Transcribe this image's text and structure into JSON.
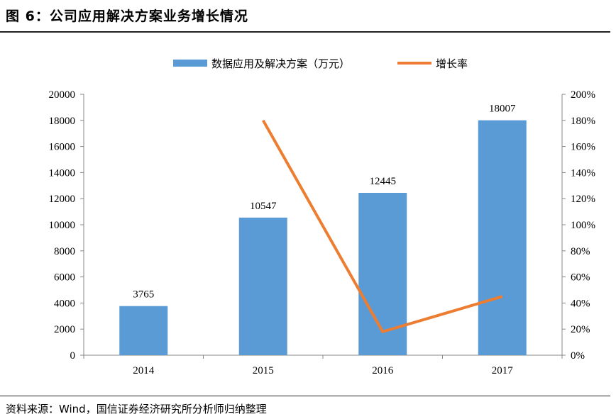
{
  "figure": {
    "title": "图 6：公司应用解决方案业务增长情况",
    "source": "资料来源：Wind，国信证券经济研究所分析师归纳整理"
  },
  "chart_data": {
    "type": "bar",
    "title": "",
    "categories": [
      "2014",
      "2015",
      "2016",
      "2017"
    ],
    "series": [
      {
        "name": "数据应用及解决方案（万元）",
        "type": "bar",
        "axis": "left",
        "color": "#5B9BD5",
        "values": [
          3765,
          10547,
          12445,
          18007
        ],
        "data_labels": [
          "3765",
          "10547",
          "12445",
          "18007"
        ]
      },
      {
        "name": "增长率",
        "type": "line",
        "axis": "right",
        "color": "#ED7D31",
        "values": [
          null,
          1.8,
          0.18,
          0.45
        ]
      }
    ],
    "y_left": {
      "min": 0,
      "max": 20000,
      "step": 2000,
      "tick_labels": [
        "0",
        "2000",
        "4000",
        "6000",
        "8000",
        "10000",
        "12000",
        "14000",
        "16000",
        "18000",
        "20000"
      ]
    },
    "y_right": {
      "min": 0,
      "max": 2.0,
      "step": 0.2,
      "tick_labels": [
        "0%",
        "20%",
        "40%",
        "60%",
        "80%",
        "100%",
        "120%",
        "140%",
        "160%",
        "180%",
        "200%"
      ]
    },
    "grid": false,
    "legend": "top-center"
  }
}
